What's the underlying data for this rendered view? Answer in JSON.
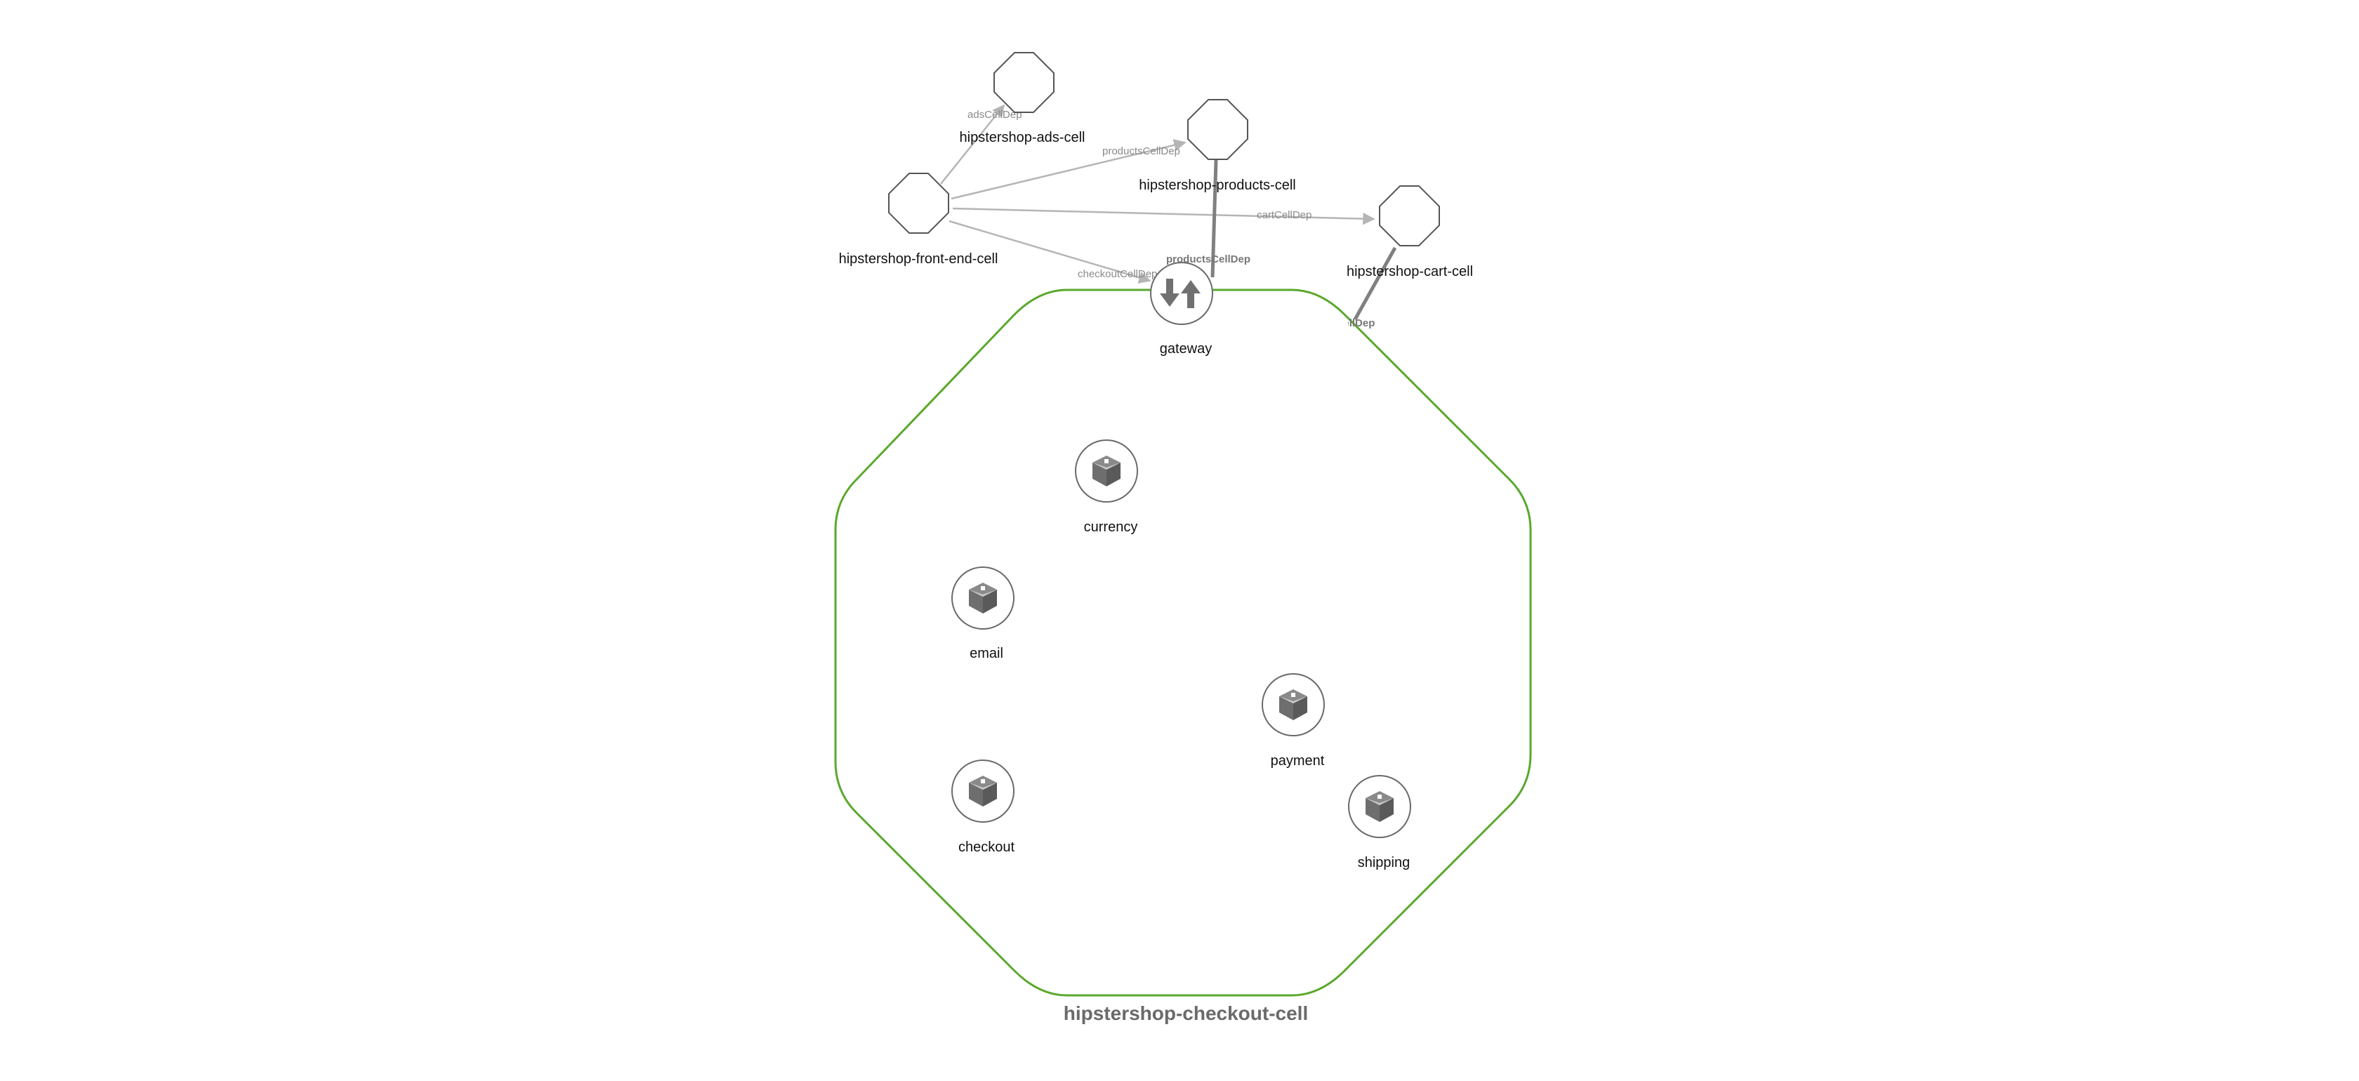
{
  "colors": {
    "cell_border": "#5aa82c",
    "edge_light": "#b5b5b5",
    "edge_dark": "#808080",
    "node_stroke": "#555555",
    "component_icon": "#6e6e6e"
  },
  "cell": {
    "title": "hipstershop-checkout-cell"
  },
  "external_cells": [
    {
      "id": "ads",
      "label": "hipstershop-ads-cell",
      "icon": "octagon-icon"
    },
    {
      "id": "products",
      "label": "hipstershop-products-cell",
      "icon": "octagon-icon"
    },
    {
      "id": "front_end",
      "label": "hipstershop-front-end-cell",
      "icon": "octagon-icon"
    },
    {
      "id": "cart",
      "label": "hipstershop-cart-cell",
      "icon": "octagon-icon"
    }
  ],
  "gateway": {
    "label": "gateway",
    "icon": "gateway-arrows-icon"
  },
  "components": [
    {
      "id": "currency",
      "label": "currency",
      "icon": "package-box-icon"
    },
    {
      "id": "email",
      "label": "email",
      "icon": "package-box-icon"
    },
    {
      "id": "payment",
      "label": "payment",
      "icon": "package-box-icon"
    },
    {
      "id": "checkout",
      "label": "checkout",
      "icon": "package-box-icon"
    },
    {
      "id": "shipping",
      "label": "shipping",
      "icon": "package-box-icon"
    }
  ],
  "edges": [
    {
      "from": "front_end",
      "to": "ads",
      "label": "adsCellDep"
    },
    {
      "from": "front_end",
      "to": "products",
      "label": "productsCellDep"
    },
    {
      "from": "front_end",
      "to": "cart",
      "label": "cartCellDep"
    },
    {
      "from": "front_end",
      "to": "gateway",
      "label": "checkoutCellDep"
    },
    {
      "from": "gateway",
      "to": "products",
      "label": "productsCellDep"
    },
    {
      "from": "cell",
      "to": "cart",
      "label": "cartCellDep"
    }
  ]
}
